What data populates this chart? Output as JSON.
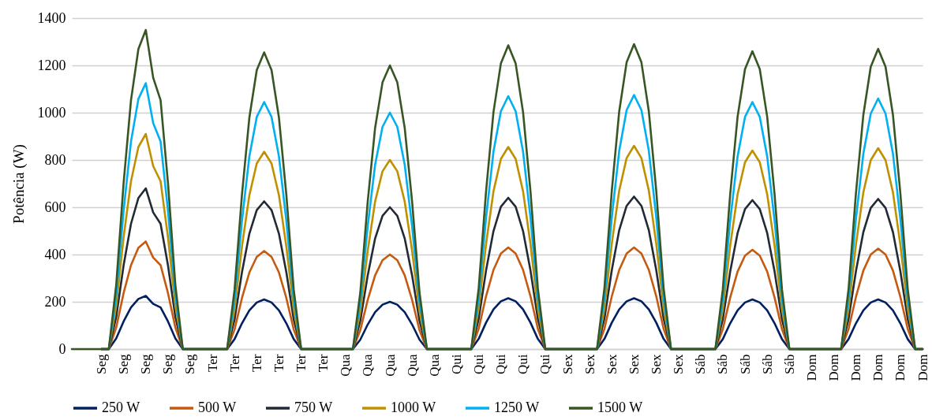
{
  "chart_data": {
    "type": "line",
    "ylabel": "Potência (W)",
    "categories": [
      null,
      null,
      null,
      null,
      "Seg",
      null,
      null,
      "Seg",
      null,
      null,
      "Seg",
      null,
      null,
      "Seg",
      null,
      null,
      "Seg",
      null,
      null,
      "Ter",
      null,
      null,
      "Ter",
      null,
      null,
      "Ter",
      null,
      null,
      "Ter",
      null,
      null,
      "Ter",
      null,
      null,
      "Ter",
      null,
      null,
      "Qua",
      null,
      null,
      "Qua",
      null,
      null,
      "Qua",
      null,
      null,
      "Qua",
      null,
      null,
      "Qua",
      null,
      null,
      "Qui",
      null,
      null,
      "Qui",
      null,
      null,
      "Qui",
      null,
      null,
      "Qui",
      null,
      null,
      "Qui",
      null,
      null,
      "Sex",
      null,
      null,
      "Sex",
      null,
      null,
      "Sex",
      null,
      null,
      "Sex",
      null,
      null,
      "Sex",
      null,
      null,
      "Sex",
      null,
      null,
      "Sáb",
      null,
      null,
      "Sáb",
      null,
      null,
      "Sáb",
      null,
      null,
      "Sáb",
      null,
      null,
      "Sáb",
      null,
      null,
      "Dom",
      null,
      null,
      "Dom",
      null,
      null,
      "Dom",
      null,
      null,
      "Dom",
      null,
      null,
      "Dom",
      null,
      null,
      "Dom"
    ],
    "series": [
      {
        "name": "250 W",
        "color": "#002060",
        "values": [
          null,
          null,
          null,
          null,
          0,
          0,
          45,
          117,
          176,
          212,
          225,
          191,
          176,
          117,
          45,
          0,
          0,
          0,
          0,
          0,
          0,
          0,
          42,
          109,
          164,
          197,
          210,
          197,
          164,
          109,
          42,
          0,
          0,
          0,
          0,
          0,
          0,
          0,
          0,
          40,
          104,
          156,
          188,
          200,
          188,
          156,
          104,
          40,
          0,
          0,
          0,
          0,
          0,
          0,
          0,
          43,
          112,
          168,
          202,
          215,
          202,
          168,
          112,
          43,
          0,
          0,
          0,
          0,
          0,
          0,
          0,
          0,
          43,
          112,
          168,
          202,
          215,
          202,
          168,
          112,
          43,
          0,
          0,
          0,
          0,
          0,
          0,
          0,
          42,
          109,
          164,
          197,
          210,
          197,
          164,
          109,
          42,
          0,
          0,
          0,
          0,
          0,
          0,
          0,
          0,
          42,
          109,
          164,
          197,
          210,
          197,
          164,
          109,
          42,
          0,
          0
        ]
      },
      {
        "name": "500 W",
        "color": "#c55a11",
        "values": [
          null,
          null,
          null,
          null,
          0,
          0,
          91,
          237,
          355,
          428,
          455,
          387,
          355,
          237,
          91,
          0,
          0,
          0,
          0,
          0,
          0,
          0,
          83,
          216,
          324,
          390,
          415,
          390,
          324,
          216,
          83,
          0,
          0,
          0,
          0,
          0,
          0,
          0,
          0,
          80,
          208,
          312,
          376,
          400,
          376,
          312,
          208,
          80,
          0,
          0,
          0,
          0,
          0,
          0,
          0,
          86,
          224,
          335,
          404,
          430,
          404,
          335,
          224,
          86,
          0,
          0,
          0,
          0,
          0,
          0,
          0,
          0,
          86,
          224,
          335,
          404,
          430,
          404,
          335,
          224,
          86,
          0,
          0,
          0,
          0,
          0,
          0,
          0,
          84,
          218,
          328,
          395,
          420,
          395,
          328,
          218,
          84,
          0,
          0,
          0,
          0,
          0,
          0,
          0,
          0,
          85,
          221,
          332,
          400,
          425,
          400,
          332,
          221,
          85,
          0,
          0
        ]
      },
      {
        "name": "750 W",
        "color": "#222a35",
        "values": [
          null,
          null,
          null,
          null,
          0,
          0,
          136,
          354,
          530,
          639,
          680,
          578,
          530,
          354,
          136,
          0,
          0,
          0,
          0,
          0,
          0,
          0,
          125,
          325,
          488,
          588,
          625,
          588,
          488,
          325,
          125,
          0,
          0,
          0,
          0,
          0,
          0,
          0,
          0,
          120,
          312,
          468,
          564,
          600,
          564,
          468,
          312,
          120,
          0,
          0,
          0,
          0,
          0,
          0,
          0,
          128,
          333,
          499,
          602,
          640,
          602,
          499,
          333,
          128,
          0,
          0,
          0,
          0,
          0,
          0,
          0,
          0,
          129,
          335,
          503,
          606,
          645,
          606,
          503,
          335,
          129,
          0,
          0,
          0,
          0,
          0,
          0,
          0,
          126,
          328,
          491,
          592,
          630,
          592,
          491,
          328,
          126,
          0,
          0,
          0,
          0,
          0,
          0,
          0,
          0,
          127,
          330,
          495,
          597,
          635,
          597,
          495,
          330,
          127,
          0,
          0
        ]
      },
      {
        "name": "1000 W",
        "color": "#bf9000",
        "values": [
          null,
          null,
          null,
          null,
          0,
          0,
          182,
          473,
          710,
          855,
          910,
          774,
          710,
          473,
          182,
          0,
          0,
          0,
          0,
          0,
          0,
          0,
          167,
          434,
          651,
          785,
          835,
          785,
          651,
          434,
          167,
          0,
          0,
          0,
          0,
          0,
          0,
          0,
          0,
          160,
          416,
          624,
          752,
          800,
          752,
          624,
          416,
          160,
          0,
          0,
          0,
          0,
          0,
          0,
          0,
          171,
          445,
          667,
          804,
          855,
          804,
          667,
          445,
          171,
          0,
          0,
          0,
          0,
          0,
          0,
          0,
          0,
          172,
          447,
          671,
          808,
          860,
          808,
          671,
          447,
          172,
          0,
          0,
          0,
          0,
          0,
          0,
          0,
          168,
          437,
          655,
          790,
          840,
          790,
          655,
          437,
          168,
          0,
          0,
          0,
          0,
          0,
          0,
          0,
          0,
          170,
          442,
          663,
          799,
          850,
          799,
          663,
          442,
          170,
          0,
          0
        ]
      },
      {
        "name": "1250 W",
        "color": "#00b0f0",
        "values": [
          null,
          null,
          null,
          null,
          0,
          0,
          225,
          585,
          878,
          1058,
          1125,
          956,
          878,
          585,
          225,
          0,
          0,
          0,
          0,
          0,
          0,
          0,
          209,
          543,
          815,
          982,
          1045,
          982,
          815,
          543,
          209,
          0,
          0,
          0,
          0,
          0,
          0,
          0,
          0,
          200,
          520,
          780,
          940,
          1000,
          940,
          780,
          520,
          200,
          0,
          0,
          0,
          0,
          0,
          0,
          0,
          214,
          556,
          835,
          1006,
          1070,
          1006,
          835,
          556,
          214,
          0,
          0,
          0,
          0,
          0,
          0,
          0,
          0,
          215,
          559,
          839,
          1011,
          1075,
          1011,
          839,
          559,
          215,
          0,
          0,
          0,
          0,
          0,
          0,
          0,
          209,
          543,
          815,
          982,
          1045,
          982,
          815,
          543,
          209,
          0,
          0,
          0,
          0,
          0,
          0,
          0,
          0,
          212,
          551,
          827,
          996,
          1060,
          996,
          827,
          551,
          212,
          0,
          0
        ]
      },
      {
        "name": "1500 W",
        "color": "#375623",
        "values": [
          0,
          0,
          0,
          0,
          0,
          0,
          270,
          702,
          1053,
          1269,
          1350,
          1148,
          1053,
          702,
          270,
          0,
          0,
          0,
          0,
          0,
          0,
          0,
          251,
          653,
          979,
          1180,
          1255,
          1180,
          979,
          653,
          251,
          0,
          0,
          0,
          0,
          0,
          0,
          0,
          0,
          240,
          624,
          936,
          1128,
          1200,
          1128,
          936,
          624,
          240,
          0,
          0,
          0,
          0,
          0,
          0,
          0,
          257,
          668,
          1002,
          1208,
          1285,
          1208,
          1002,
          668,
          257,
          0,
          0,
          0,
          0,
          0,
          0,
          0,
          0,
          258,
          671,
          1006,
          1213,
          1290,
          1213,
          1006,
          671,
          258,
          0,
          0,
          0,
          0,
          0,
          0,
          0,
          252,
          655,
          983,
          1184,
          1260,
          1184,
          983,
          655,
          252,
          0,
          0,
          0,
          0,
          0,
          0,
          0,
          0,
          254,
          660,
          991,
          1194,
          1270,
          1194,
          991,
          660,
          254,
          0,
          0
        ]
      }
    ],
    "ylim": [
      0,
      1400
    ],
    "yticks": [
      0,
      200,
      400,
      600,
      800,
      1000,
      1200,
      1400
    ],
    "grid": "y",
    "legend": "bottom",
    "marker": "none",
    "line_style": "solid"
  }
}
